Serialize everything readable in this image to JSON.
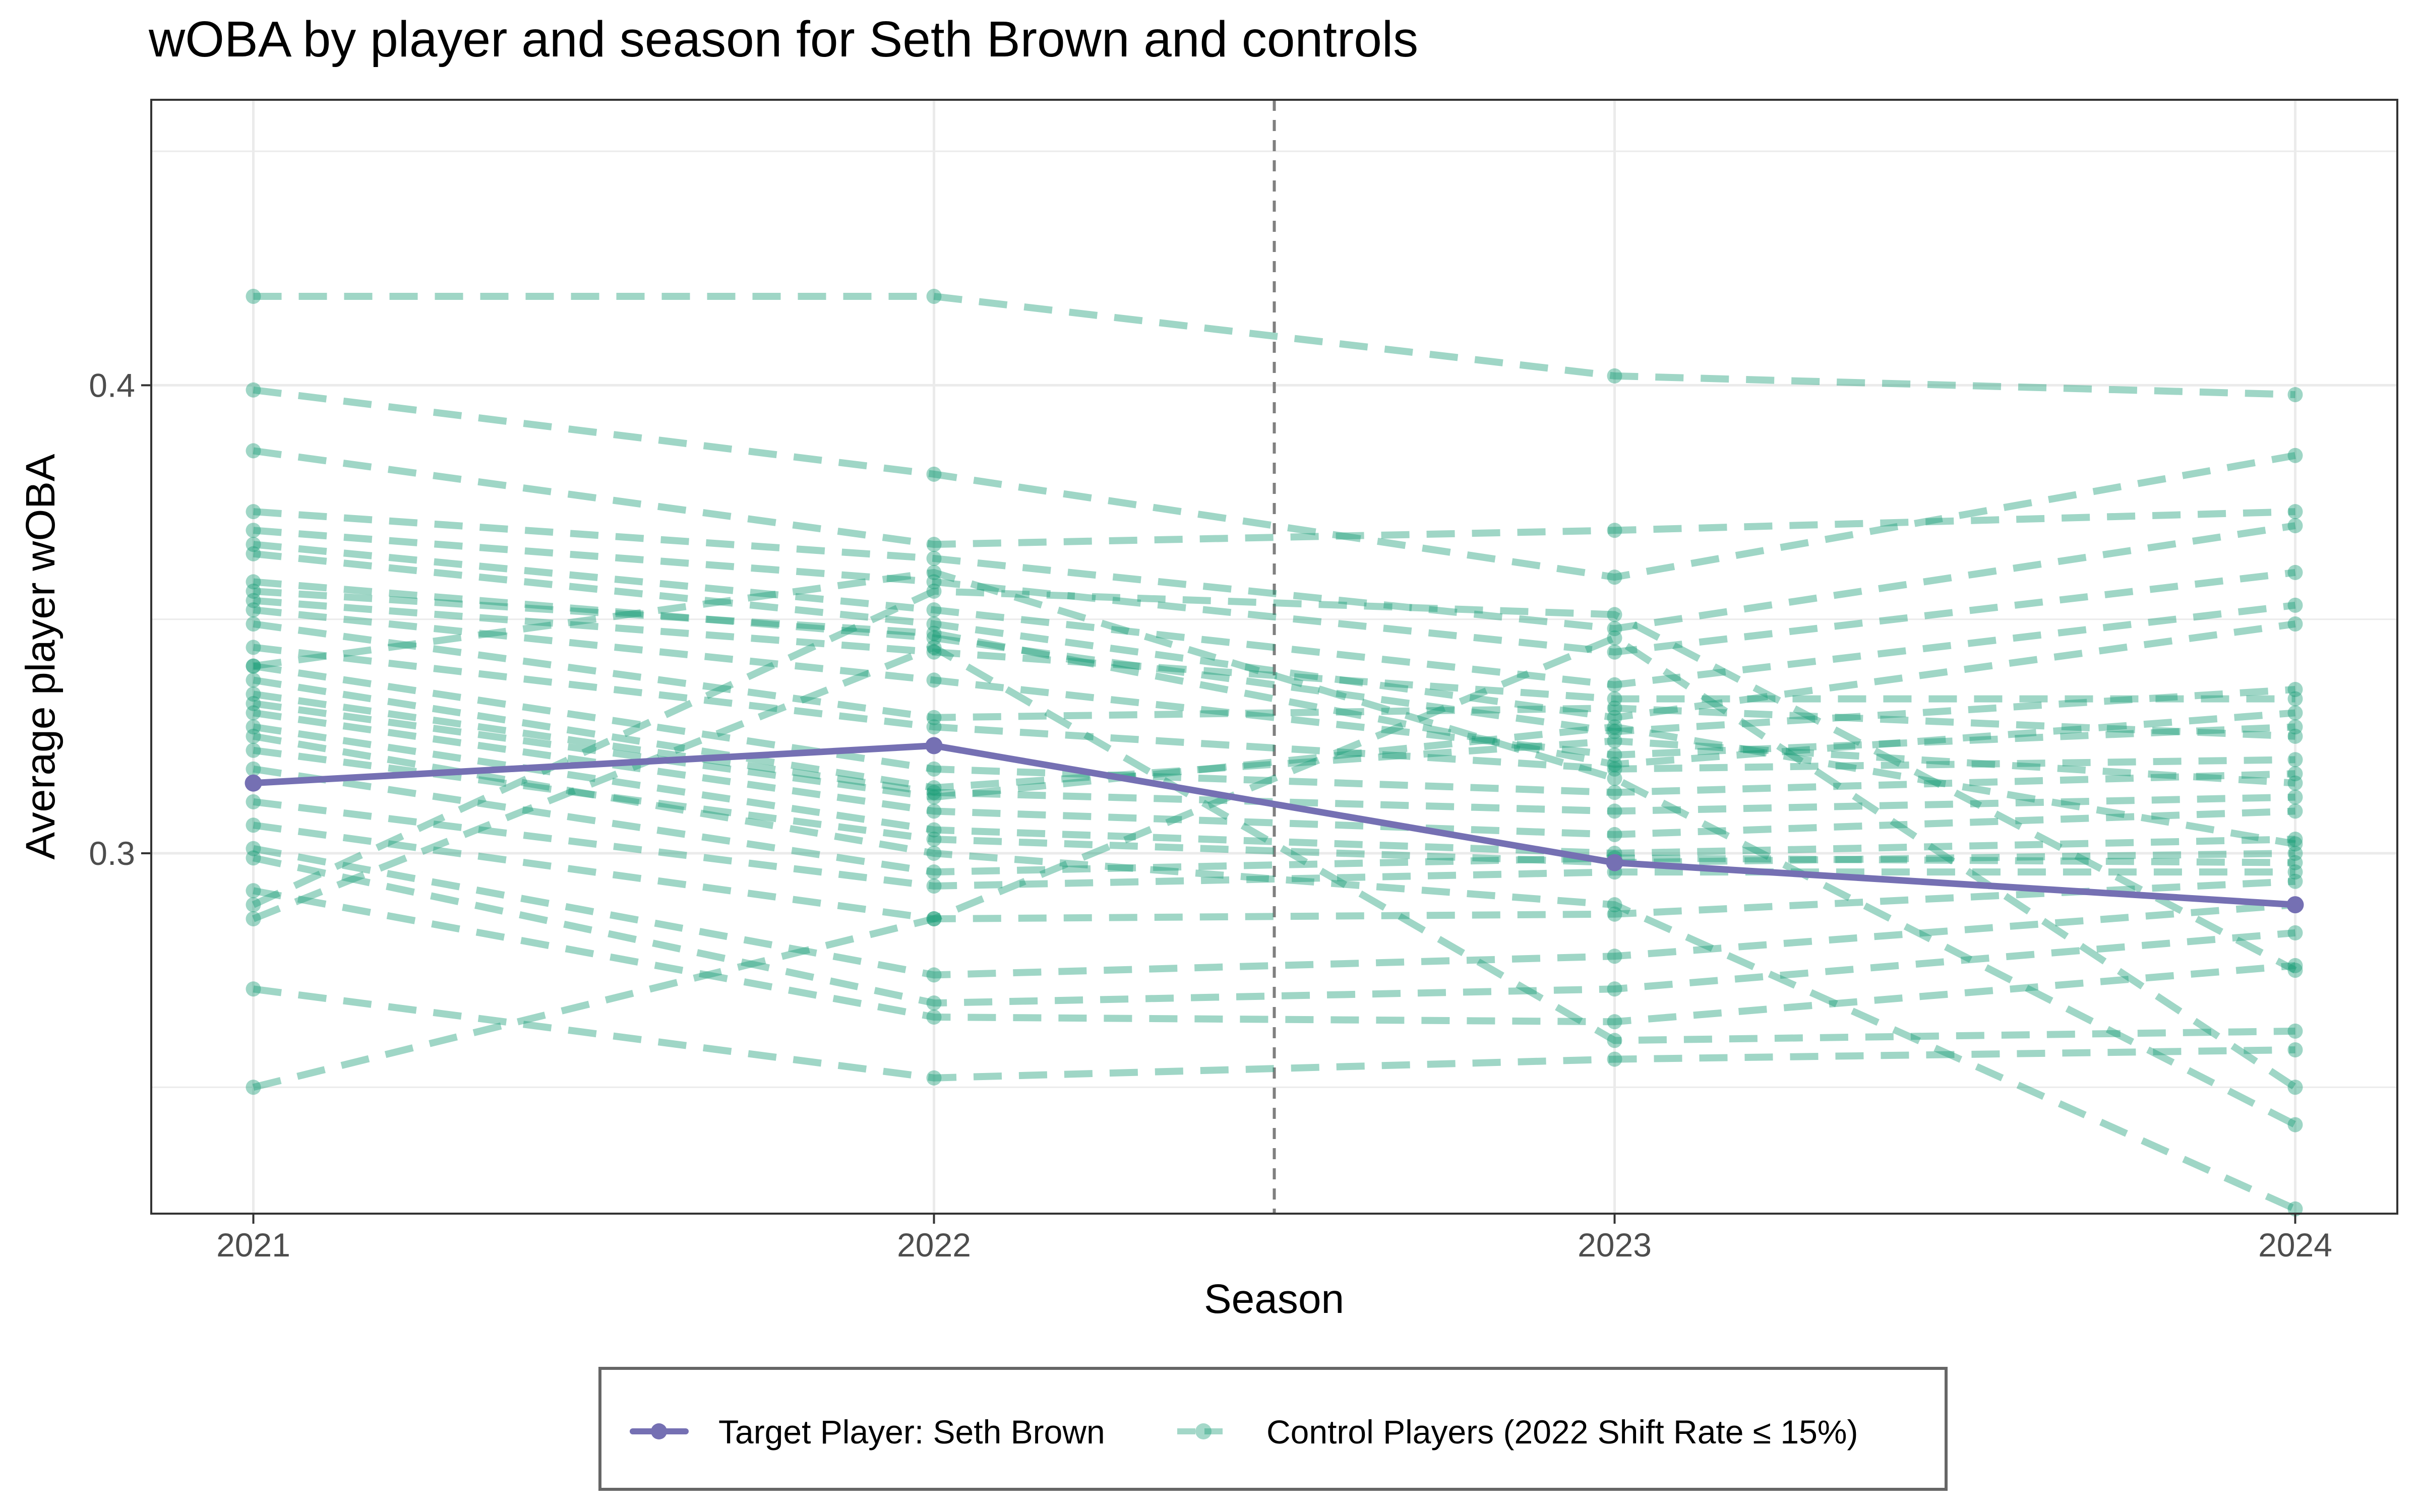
{
  "chart_data": {
    "type": "line",
    "title": "wOBA by player and season for Seth Brown and controls",
    "xlabel": "Season",
    "ylabel": "Average player wOBA",
    "x": [
      2021,
      2022,
      2023,
      2024
    ],
    "x_tick_labels": [
      "2021",
      "2022",
      "2023",
      "2024"
    ],
    "y_ticks": [
      0.3,
      0.4
    ],
    "y_tick_labels": [
      "0.3",
      "0.4"
    ],
    "xlim": [
      2020.85,
      2024.15
    ],
    "ylim": [
      0.223,
      0.461
    ],
    "grid": true,
    "reference_line": {
      "x": 2022.5,
      "style": "dashed"
    },
    "legend": {
      "placement": "bottom",
      "entries": [
        {
          "label": "Target Player: Seth Brown",
          "color": "#7570b3",
          "style": "solid"
        },
        {
          "label": "Control Players (2022 Shift Rate ≤ 15%)",
          "color": "#1b9e77",
          "style": "dashed"
        }
      ]
    },
    "target": {
      "name": "Target Player: Seth Brown",
      "color": "#7570b3",
      "values": [
        0.315,
        0.323,
        0.298,
        0.289
      ]
    },
    "controls": {
      "name": "Control Players (2022 Shift Rate ≤ 15%)",
      "color": "#1b9e77",
      "series": [
        [
          0.419,
          0.419,
          0.402,
          0.398
        ],
        [
          0.399,
          0.381,
          0.359,
          0.385
        ],
        [
          0.386,
          0.366,
          0.369,
          0.373
        ],
        [
          0.373,
          0.363,
          0.348,
          0.37
        ],
        [
          0.369,
          0.358,
          0.343,
          0.36
        ],
        [
          0.366,
          0.352,
          0.336,
          0.353
        ],
        [
          0.364,
          0.349,
          0.329,
          0.349
        ],
        [
          0.358,
          0.346,
          0.326,
          0.335
        ],
        [
          0.354,
          0.343,
          0.333,
          0.333
        ],
        [
          0.352,
          0.337,
          0.321,
          0.327
        ],
        [
          0.349,
          0.329,
          0.331,
          0.325
        ],
        [
          0.344,
          0.327,
          0.318,
          0.32
        ],
        [
          0.34,
          0.318,
          0.313,
          0.317
        ],
        [
          0.337,
          0.314,
          0.324,
          0.315
        ],
        [
          0.334,
          0.313,
          0.309,
          0.312
        ],
        [
          0.33,
          0.309,
          0.304,
          0.309
        ],
        [
          0.327,
          0.305,
          0.3,
          0.303
        ],
        [
          0.322,
          0.303,
          0.298,
          0.3
        ],
        [
          0.318,
          0.296,
          0.299,
          0.298
        ],
        [
          0.311,
          0.293,
          0.296,
          0.296
        ],
        [
          0.306,
          0.286,
          0.287,
          0.294
        ],
        [
          0.301,
          0.274,
          0.278,
          0.289
        ],
        [
          0.299,
          0.268,
          0.271,
          0.283
        ],
        [
          0.292,
          0.265,
          0.264,
          0.276
        ],
        [
          0.289,
          0.356,
          0.351,
          0.275
        ],
        [
          0.286,
          0.344,
          0.26,
          0.262
        ],
        [
          0.271,
          0.252,
          0.256,
          0.258
        ],
        [
          0.25,
          0.286,
          0.346,
          0.25
        ],
        [
          0.34,
          0.36,
          0.316,
          0.242
        ],
        [
          0.325,
          0.3,
          0.289,
          0.224
        ],
        [
          0.332,
          0.312,
          0.327,
          0.302
        ],
        [
          0.356,
          0.347,
          0.319,
          0.33
        ]
      ]
    }
  }
}
